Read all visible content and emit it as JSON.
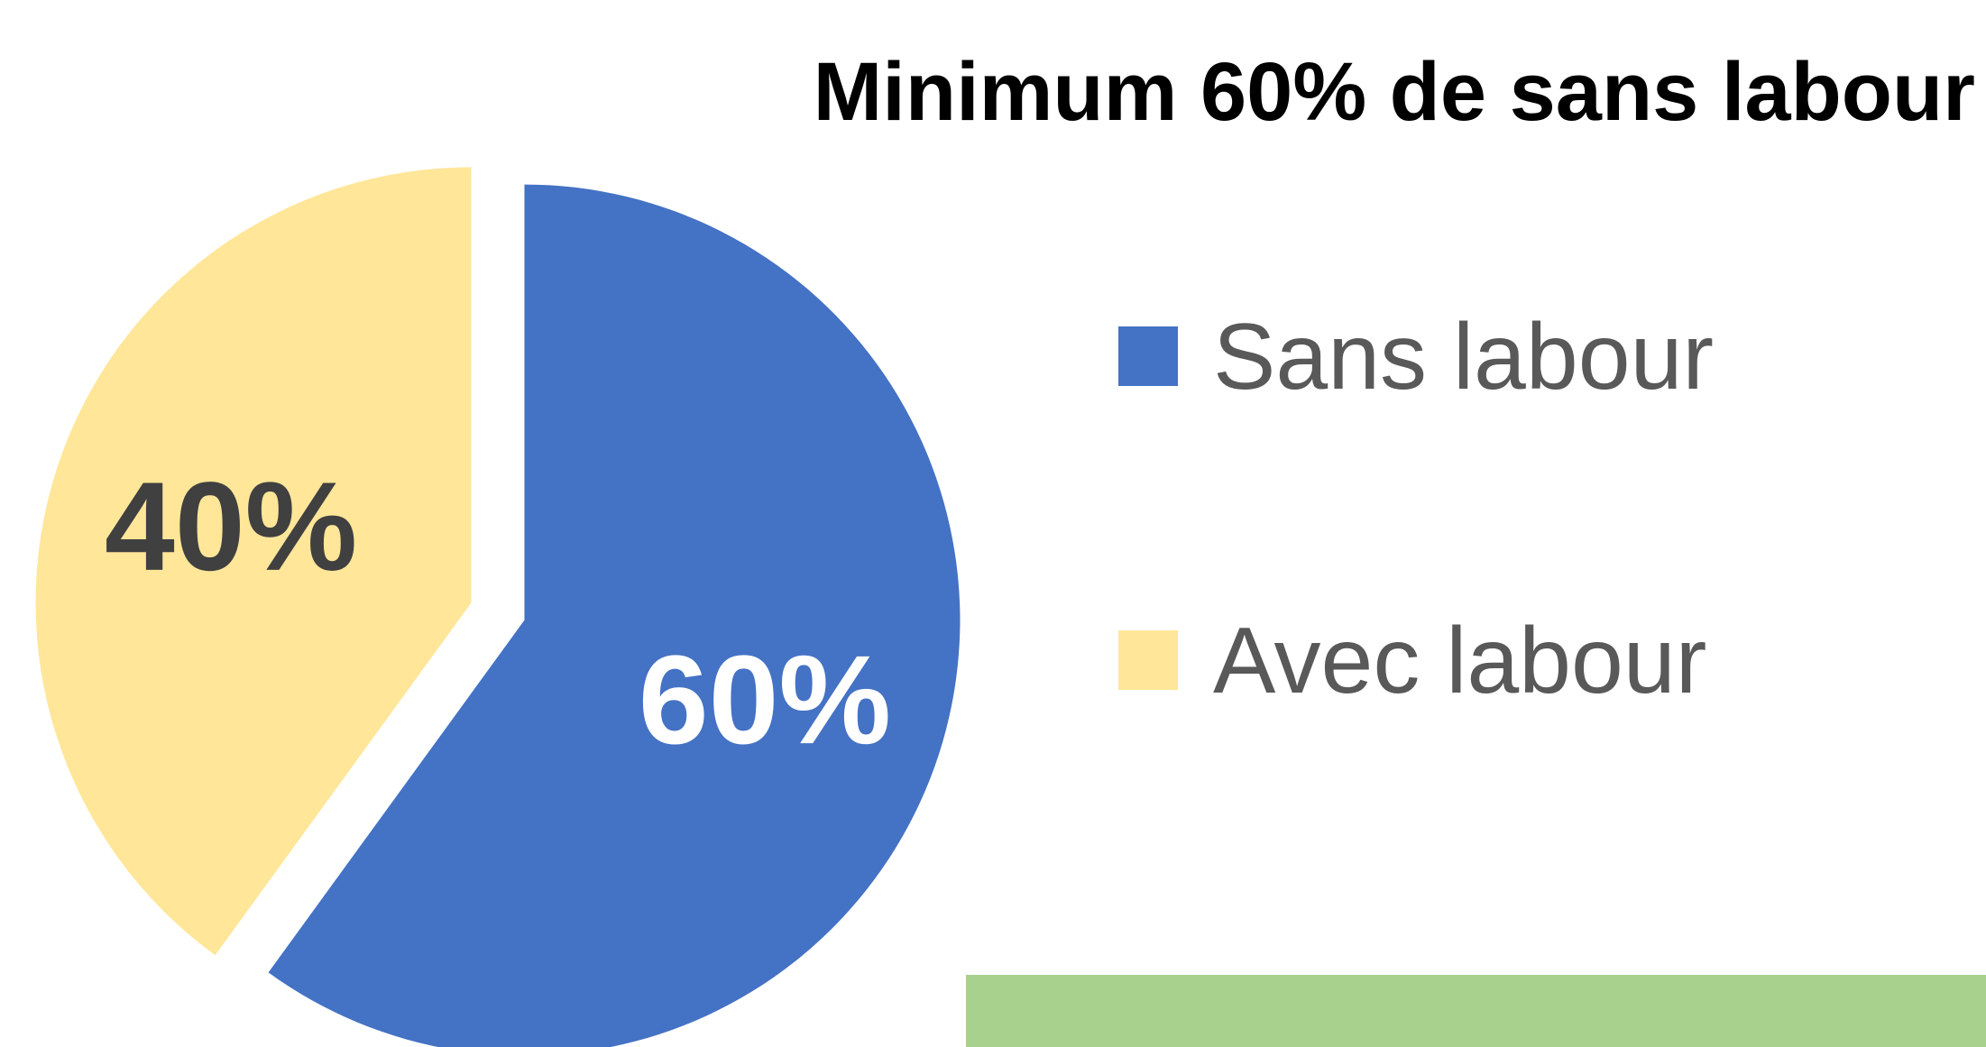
{
  "chart_data": {
    "type": "pie",
    "title": "Minimum 60% de sans labour",
    "categories": [
      "Sans labour",
      "Avec labour"
    ],
    "values": [
      60,
      40
    ],
    "value_labels": [
      "60%",
      "40%"
    ],
    "colors": [
      "#4472c4",
      "#ffe699"
    ],
    "label_colors": [
      "#ffffff",
      "#404040"
    ],
    "legend": "right"
  }
}
